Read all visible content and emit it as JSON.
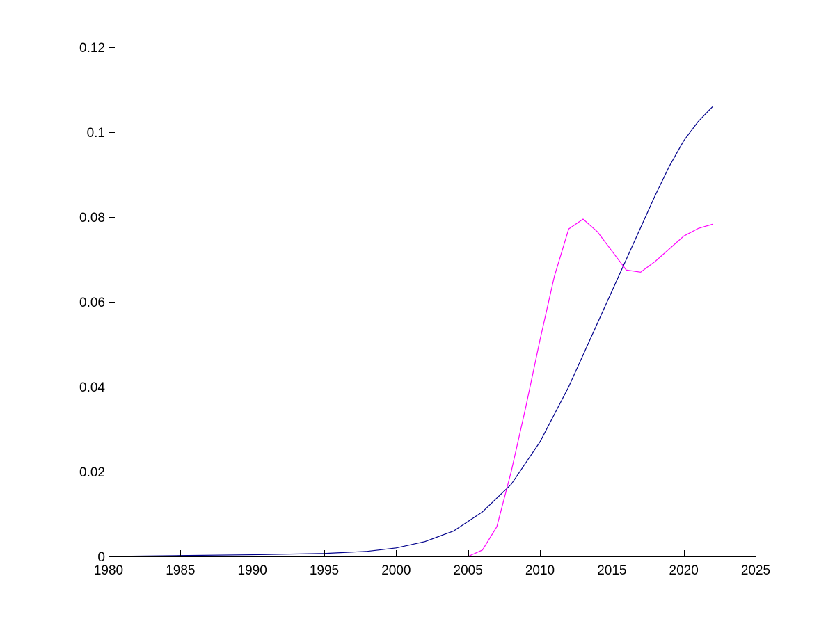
{
  "chart_data": {
    "type": "line",
    "title": "",
    "xlabel": "",
    "ylabel": "",
    "xlim": [
      1980,
      2025
    ],
    "ylim": [
      0,
      0.12
    ],
    "grid": false,
    "legend": "none",
    "x_ticks": [
      "1980",
      "1985",
      "1990",
      "1995",
      "2000",
      "2005",
      "2010",
      "2015",
      "2020",
      "2025"
    ],
    "y_ticks": [
      "0",
      "0.02",
      "0.04",
      "0.06",
      "0.08",
      "0.1",
      "0.12"
    ],
    "series": [
      {
        "color": "#00008b",
        "x": [
          1980,
          1985,
          1990,
          1995,
          1998,
          2000,
          2002,
          2004,
          2006,
          2008,
          2010,
          2012,
          2014,
          2016,
          2018,
          2019,
          2020,
          2021,
          2022
        ],
        "y": [
          0,
          0.0002,
          0.0004,
          0.0007,
          0.0012,
          0.002,
          0.0035,
          0.006,
          0.0105,
          0.017,
          0.027,
          0.04,
          0.055,
          0.07,
          0.085,
          0.092,
          0.098,
          0.1025,
          0.106
        ]
      },
      {
        "color": "#ff00ff",
        "x": [
          1980,
          2005,
          2006,
          2007,
          2008,
          2009,
          2010,
          2011,
          2012,
          2013,
          2014,
          2015,
          2016,
          2017,
          2018,
          2019,
          2020,
          2021,
          2022
        ],
        "y": [
          0,
          0,
          0.0015,
          0.007,
          0.02,
          0.035,
          0.051,
          0.066,
          0.0772,
          0.0795,
          0.0765,
          0.072,
          0.0675,
          0.067,
          0.0695,
          0.0725,
          0.0755,
          0.0773,
          0.0783
        ]
      }
    ]
  }
}
